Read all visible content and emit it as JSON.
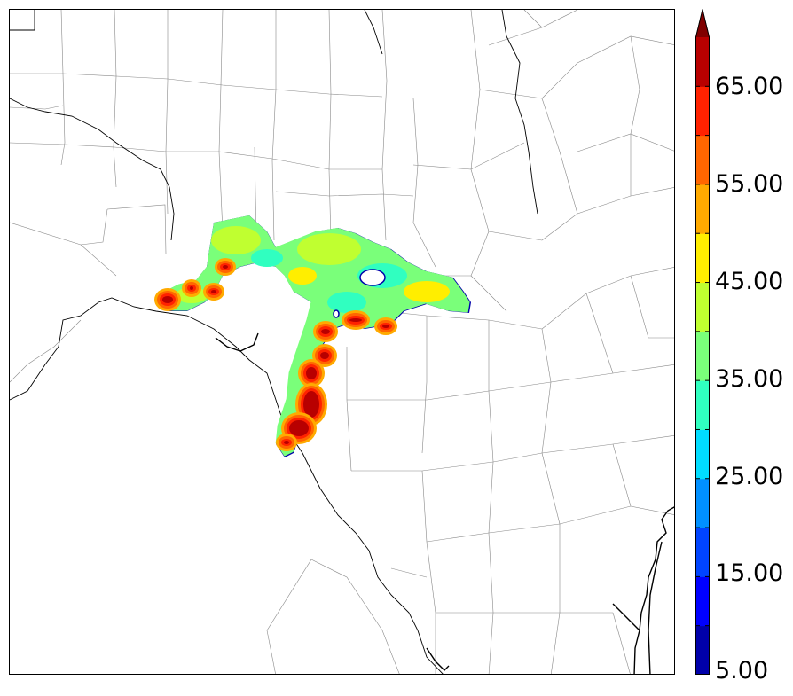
{
  "map": {
    "variable": "reflectivity",
    "colormap": "jet",
    "features": [
      "county-boundaries",
      "state-boundary",
      "rivers",
      "coastline",
      "precip-field"
    ]
  },
  "colorbar": {
    "min": 5,
    "max": 70,
    "step": 5,
    "extend": "max",
    "labels": [
      "5.00",
      "15.00",
      "25.00",
      "35.00",
      "45.00",
      "55.00",
      "65.00"
    ],
    "colors": [
      "#0000aa",
      "#0000ff",
      "#0044ff",
      "#0090ff",
      "#00ddff",
      "#30ffc0",
      "#7aff7a",
      "#c0ff30",
      "#ffee00",
      "#ffaa00",
      "#ff6600",
      "#ff2200",
      "#b80000"
    ],
    "extend_color": "#800000"
  }
}
